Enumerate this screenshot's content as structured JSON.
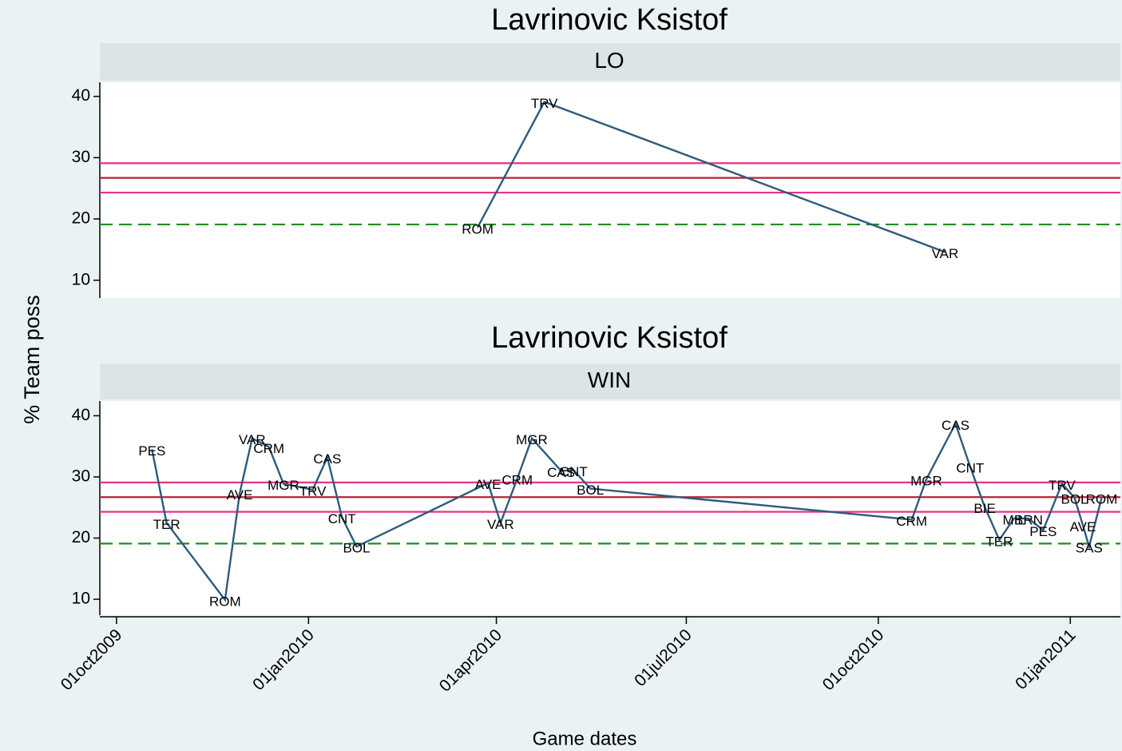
{
  "chart_data": [
    {
      "type": "line",
      "title": "Lavrinovic Ksistof",
      "panel": "LO",
      "ylabel": "% Team poss",
      "xlim": [
        "2009-09-23",
        "2011-01-25"
      ],
      "ylim": [
        7.1,
        42.3
      ],
      "yticks": [
        10,
        20,
        30,
        40
      ],
      "hlines": [
        {
          "value": 29.1,
          "color": "#e8338a",
          "style": "solid"
        },
        {
          "value": 26.7,
          "color": "#b5223a",
          "style": "solid"
        },
        {
          "value": 24.3,
          "color": "#e8338a",
          "style": "solid"
        },
        {
          "value": 19.1,
          "color": "#1f8f1f",
          "style": "dashed"
        }
      ],
      "series": [
        {
          "color": "#2f5b7c",
          "x": [
            "2010-03-23",
            "2010-04-24",
            "2010-11-02"
          ],
          "values": [
            18.6,
            39.1,
            14.6
          ],
          "point_labels": [
            "ROM",
            "TRV",
            "VAR"
          ]
        }
      ]
    },
    {
      "type": "line",
      "title": "Lavrinovic Ksistof",
      "panel": "WIN",
      "xlabel": "Game dates",
      "xlim": [
        "2009-09-23",
        "2011-01-25"
      ],
      "ylim": [
        7.4,
        42.4
      ],
      "yticks": [
        10,
        20,
        30,
        40
      ],
      "xticks": [
        {
          "value": "2009-10-01",
          "label": "01oct2009"
        },
        {
          "value": "2010-01-01",
          "label": "01jan2010"
        },
        {
          "value": "2010-04-01",
          "label": "01apr2010"
        },
        {
          "value": "2010-07-01",
          "label": "01jul2010"
        },
        {
          "value": "2010-10-01",
          "label": "01oct2010"
        },
        {
          "value": "2011-01-01",
          "label": "01jan2011"
        }
      ],
      "hlines": [
        {
          "value": 29.1,
          "color": "#e8338a",
          "style": "solid"
        },
        {
          "value": 26.7,
          "color": "#b5223a",
          "style": "solid"
        },
        {
          "value": 24.3,
          "color": "#e8338a",
          "style": "solid"
        },
        {
          "value": 19.1,
          "color": "#1f8f1f",
          "style": "dashed"
        }
      ],
      "series": [
        {
          "color": "#2f5b7c",
          "x": [
            "2009-10-18",
            "2009-10-25",
            "2009-11-22",
            "2009-11-29",
            "2009-12-05",
            "2009-12-13",
            "2009-12-20",
            "2010-01-03",
            "2010-01-10",
            "2010-01-17",
            "2010-01-24",
            "2010-03-28",
            "2010-04-03",
            "2010-04-11",
            "2010-04-18",
            "2010-05-02",
            "2010-05-08",
            "2010-05-16",
            "2010-10-17",
            "2010-10-24",
            "2010-11-07",
            "2010-11-14",
            "2010-11-21",
            "2010-11-28",
            "2010-12-05",
            "2010-12-12",
            "2010-12-19",
            "2010-12-28",
            "2011-01-03",
            "2011-01-07",
            "2011-01-10",
            "2011-01-16"
          ],
          "values": [
            34.5,
            22.5,
            9.9,
            27.3,
            36.3,
            34.9,
            28.9,
            27.9,
            33.2,
            23.4,
            18.6,
            29.0,
            22.5,
            29.7,
            36.3,
            31.0,
            31.1,
            28.1,
            23.0,
            29.6,
            38.7,
            31.7,
            25.1,
            19.7,
            23.2,
            23.2,
            21.3,
            28.9,
            26.6,
            22.1,
            18.6,
            26.6
          ],
          "point_labels": [
            "PES",
            "TER",
            "ROM",
            "AVE",
            "VAR",
            "CRM",
            "MGR",
            "TRV",
            "CAS",
            "CNT",
            "BOL",
            "AVE",
            "VAR",
            "CRM",
            "MGR",
            "CAS",
            "CNT",
            "BOL",
            "CRM",
            "MGR",
            "CAS",
            "CNT",
            "BIE",
            "TER",
            "MIL",
            "BRN",
            "PES",
            "TRV",
            "BOL",
            "AVE",
            "SAS",
            "ROM"
          ]
        }
      ]
    }
  ]
}
